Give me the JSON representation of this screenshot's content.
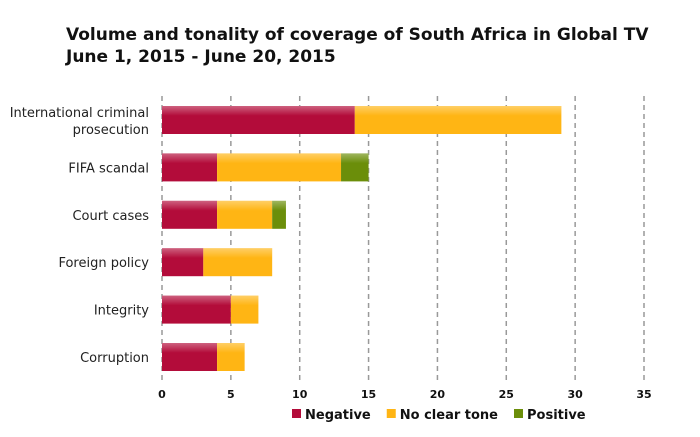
{
  "chart_data": {
    "type": "bar",
    "orientation": "horizontal",
    "stacked": true,
    "title": "Volume and tonality of coverage of South Africa in Global TV",
    "subtitle": "June 1, 2015  - June 20, 2015",
    "categories": [
      [
        "International criminal",
        "prosecution"
      ],
      [
        "FIFA scandal"
      ],
      [
        "Court cases"
      ],
      [
        "Foreign policy"
      ],
      [
        "Integrity"
      ],
      [
        "Corruption"
      ]
    ],
    "series": [
      {
        "name": "Negative",
        "color": "#b30c3a",
        "values": [
          14,
          4,
          4,
          3,
          5,
          4
        ]
      },
      {
        "name": "No clear tone",
        "color": "#ffb514",
        "values": [
          15,
          9,
          4,
          5,
          2,
          2
        ]
      },
      {
        "name": "Positive",
        "color": "#6b8e0a",
        "values": [
          0,
          2,
          1,
          0,
          0,
          0
        ]
      }
    ],
    "xlim": [
      0,
      35
    ],
    "xticks": [
      "0",
      "5",
      "10",
      "15",
      "20",
      "25",
      "30",
      "35"
    ],
    "grid": "vertical dashed",
    "legend": "bottom"
  }
}
